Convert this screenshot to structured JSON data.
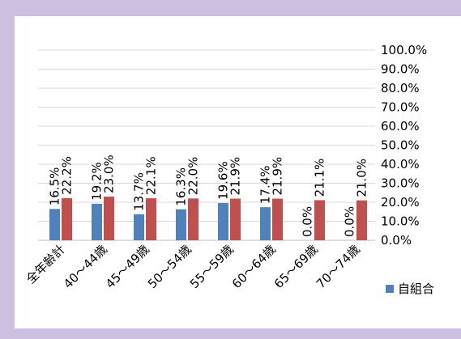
{
  "chart_data": {
    "type": "bar",
    "categories": [
      "全年齢計",
      "40～44歳",
      "45～49歳",
      "50～54歳",
      "55～59歳",
      "60～64歳",
      "65～69歳",
      "70～74歳"
    ],
    "series": [
      {
        "name": "自組合",
        "color": "#4f81bd",
        "values": [
          16.5,
          19.2,
          13.7,
          16.3,
          19.6,
          17.4,
          0.0,
          0.0
        ],
        "value_labels": [
          "16.5%",
          "19.2%",
          "13.7%",
          "16.3%",
          "19.6%",
          "17.4%",
          "0.0%",
          "0.0%"
        ]
      },
      {
        "color": "#c0504d",
        "values": [
          22.2,
          23.0,
          22.1,
          22.0,
          21.9,
          21.9,
          21.1,
          21.0
        ],
        "value_labels": [
          "22.2%",
          "23.0%",
          "22.1%",
          "22.0%",
          "21.9%",
          "21.9%",
          "21.1%",
          "21.0%"
        ]
      }
    ],
    "ylim": [
      0,
      100
    ],
    "yticks": [
      {
        "value": 0,
        "label": "0.0%"
      },
      {
        "value": 10,
        "label": "10.0%"
      },
      {
        "value": 20,
        "label": "20.0%"
      },
      {
        "value": 30,
        "label": "30.0%"
      },
      {
        "value": 40,
        "label": "40.0%"
      },
      {
        "value": 50,
        "label": "50.0%"
      },
      {
        "value": 60,
        "label": "60.0%"
      },
      {
        "value": 70,
        "label": "70.0%"
      },
      {
        "value": 80,
        "label": "80.0%"
      },
      {
        "value": 90,
        "label": "90.0%"
      },
      {
        "value": 100,
        "label": "100.0%"
      }
    ],
    "grid": true,
    "legend": "bottom-right"
  }
}
